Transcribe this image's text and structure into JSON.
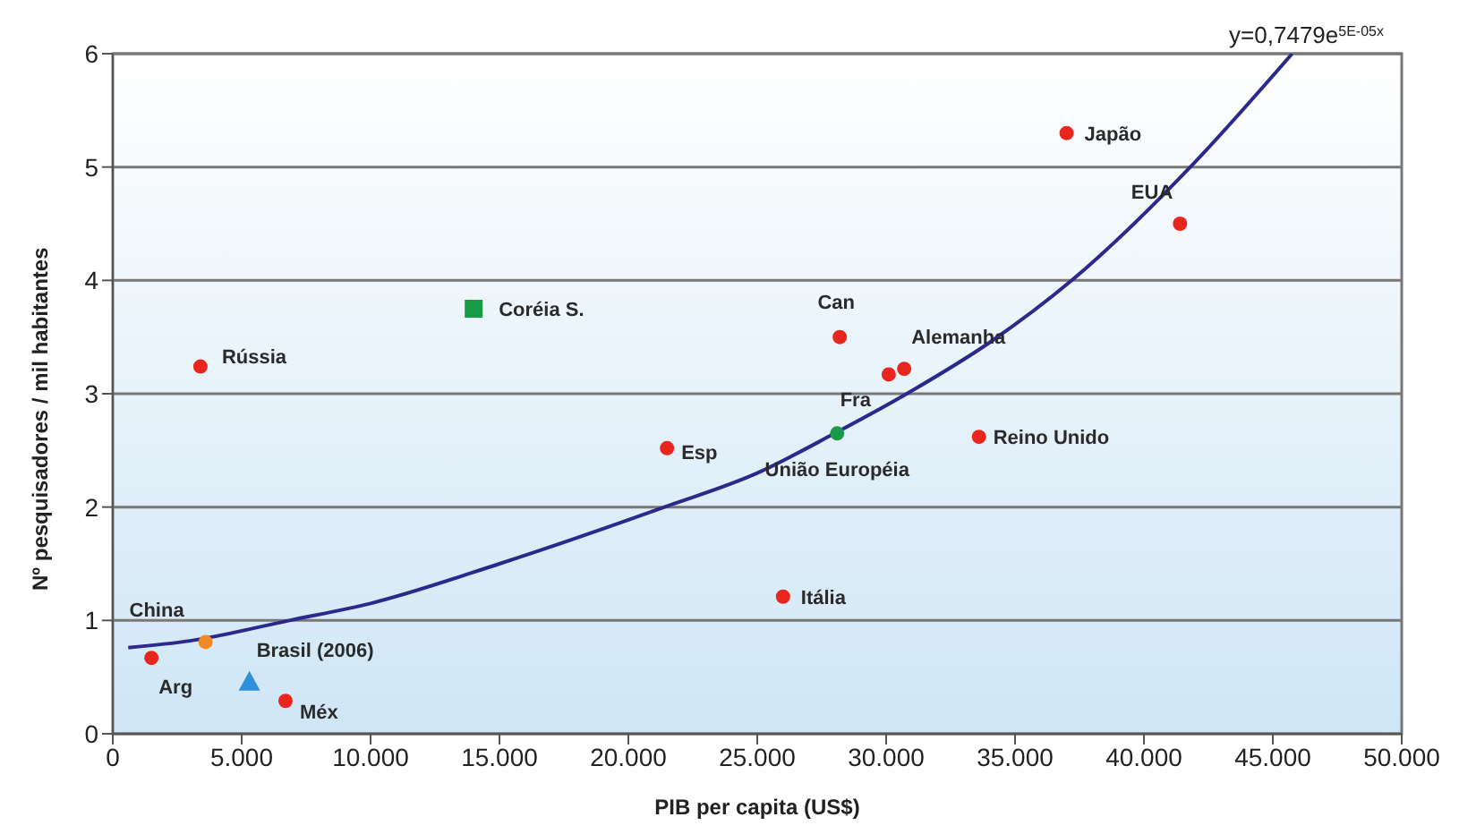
{
  "chart_data": {
    "type": "scatter",
    "xlabel": "PIB per capita (US$)",
    "ylabel": "Nº pesquisadores / mil habitantes",
    "annotations": [
      "y=0,7479e$^{5E-05x}$"
    ],
    "xlim": [
      0,
      50000
    ],
    "ylim": [
      0,
      6
    ],
    "xticks": [
      0,
      {
        "value": 5000,
        "label": "5.000"
      },
      {
        "value": 10000,
        "label": "10.000"
      },
      {
        "value": 15000,
        "label": "15.000"
      },
      {
        "value": 20000,
        "label": "20.000"
      },
      {
        "value": 25000,
        "label": "25.000"
      },
      {
        "value": 30000,
        "label": "30.000"
      },
      {
        "value": 35000,
        "label": "35.000"
      },
      {
        "value": 40000,
        "label": "40.000"
      },
      {
        "value": 45000,
        "label": "45.000"
      },
      {
        "value": 50000,
        "label": "50.000"
      }
    ],
    "yticks": [
      0,
      1,
      2,
      3,
      4,
      5,
      6
    ],
    "grid": "y",
    "legend": false,
    "series": [
      {
        "name": "Japão",
        "color": "#e8261e",
        "marker": "circle",
        "x": [
          37000
        ],
        "values": [
          5.3
        ]
      },
      {
        "name": "EUA",
        "color": "#e8261e",
        "marker": "circle",
        "x": [
          41400
        ],
        "values": [
          4.5
        ]
      },
      {
        "name": "Can",
        "color": "#e8261e",
        "marker": "circle",
        "x": [
          28200
        ],
        "values": [
          3.5
        ]
      },
      {
        "name": "Alemanha",
        "color": "#e8261e",
        "marker": "circle",
        "x": [
          30700
        ],
        "values": [
          3.22
        ]
      },
      {
        "name": "Fra",
        "color": "#e8261e",
        "marker": "circle",
        "x": [
          30100
        ],
        "values": [
          3.17
        ]
      },
      {
        "name": "União Européia",
        "color": "#1a9b48",
        "marker": "circle",
        "x": [
          28100
        ],
        "values": [
          2.65
        ]
      },
      {
        "name": "Reino Unido",
        "color": "#e8261e",
        "marker": "circle",
        "x": [
          33600
        ],
        "values": [
          2.62
        ]
      },
      {
        "name": "Esp",
        "color": "#e8261e",
        "marker": "circle",
        "x": [
          21500
        ],
        "values": [
          2.52
        ]
      },
      {
        "name": "Itália",
        "color": "#e8261e",
        "marker": "circle",
        "x": [
          26000
        ],
        "values": [
          1.21
        ]
      },
      {
        "name": "Rússia",
        "color": "#e8261e",
        "marker": "circle",
        "x": [
          3400
        ],
        "values": [
          3.24
        ]
      },
      {
        "name": "Coréia S.",
        "color": "#1a9b48",
        "marker": "square",
        "x": [
          14000
        ],
        "values": [
          3.75
        ]
      },
      {
        "name": "China",
        "color": "#f08a24",
        "marker": "circle",
        "x": [
          3600
        ],
        "values": [
          0.81
        ]
      },
      {
        "name": "Arg",
        "color": "#e8261e",
        "marker": "circle",
        "x": [
          1500
        ],
        "values": [
          0.67
        ]
      },
      {
        "name": "Brasil (2006)",
        "color": "#2f8fd8",
        "marker": "triangle",
        "x": [
          5300
        ],
        "values": [
          0.46
        ]
      },
      {
        "name": "Méx",
        "color": "#e8261e",
        "marker": "circle",
        "x": [
          6700
        ],
        "values": [
          0.29
        ]
      },
      {
        "type": "line",
        "color": "#2b2a8c",
        "marker": "none",
        "line_style": "solid",
        "x": [
          600,
          3000,
          6850,
          10000,
          15000,
          21400,
          25000,
          28000,
          30800,
          34000,
          37200,
          41800,
          45750
        ],
        "values": [
          0.76,
          0.82,
          1.0,
          1.15,
          1.5,
          2.0,
          2.3,
          2.65,
          3.0,
          3.45,
          4.0,
          5.0,
          6.0
        ]
      }
    ]
  }
}
